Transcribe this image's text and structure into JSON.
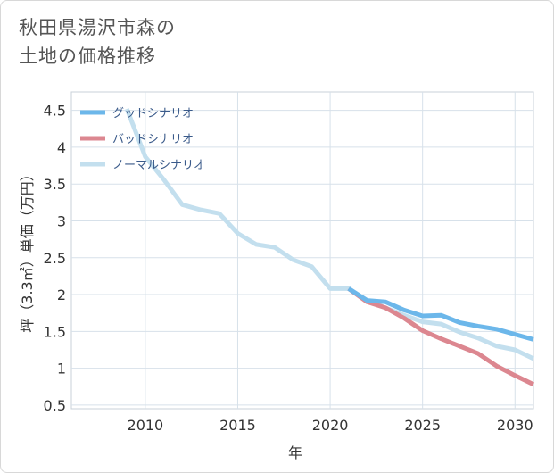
{
  "page": {
    "title_line1": "秋田県湯沢市森の",
    "title_line2": "土地の価格推移"
  },
  "chart_data": {
    "type": "line",
    "title": "秋田県湯沢市森の土地の価格推移",
    "xlabel": "年",
    "ylabel": "坪（3.3㎡）単価（万円）",
    "xlim": [
      2006,
      2031
    ],
    "ylim": [
      0.45,
      4.75
    ],
    "x_ticks": [
      2010,
      2015,
      2020,
      2025,
      2030
    ],
    "y_ticks": [
      0.5,
      1,
      1.5,
      2,
      2.5,
      3,
      3.5,
      4,
      4.5
    ],
    "y_tick_labels": [
      "0.5",
      "1",
      "1.5",
      "2",
      "2.5",
      "3",
      "3.5",
      "4",
      "4.5"
    ],
    "grid": true,
    "legend_position": "top-left",
    "series": [
      {
        "name": "グッドシナリオ",
        "color": "#6cb7ea",
        "x": [
          2021,
          2022,
          2023,
          2024,
          2025,
          2026,
          2027,
          2028,
          2029,
          2030,
          2031
        ],
        "y": [
          2.08,
          1.92,
          1.9,
          1.79,
          1.71,
          1.72,
          1.62,
          1.57,
          1.53,
          1.46,
          1.39
        ]
      },
      {
        "name": "バッドシナリオ",
        "color": "#dc8790",
        "x": [
          2021,
          2022,
          2023,
          2024,
          2025,
          2026,
          2027,
          2028,
          2029,
          2030,
          2031
        ],
        "y": [
          2.08,
          1.9,
          1.82,
          1.68,
          1.51,
          1.4,
          1.3,
          1.2,
          1.03,
          0.9,
          0.78
        ]
      },
      {
        "name": "ノーマルシナリオ",
        "color": "#c3dfee",
        "x": [
          2009,
          2010,
          2011,
          2012,
          2013,
          2014,
          2015,
          2016,
          2017,
          2018,
          2019,
          2020,
          2021,
          2022,
          2023,
          2024,
          2025,
          2026,
          2027,
          2028,
          2029,
          2030,
          2031
        ],
        "y": [
          4.52,
          3.87,
          3.56,
          3.22,
          3.15,
          3.1,
          2.83,
          2.68,
          2.64,
          2.47,
          2.38,
          2.08,
          2.08,
          1.92,
          1.82,
          1.72,
          1.63,
          1.6,
          1.49,
          1.41,
          1.3,
          1.25,
          1.13
        ]
      }
    ]
  }
}
